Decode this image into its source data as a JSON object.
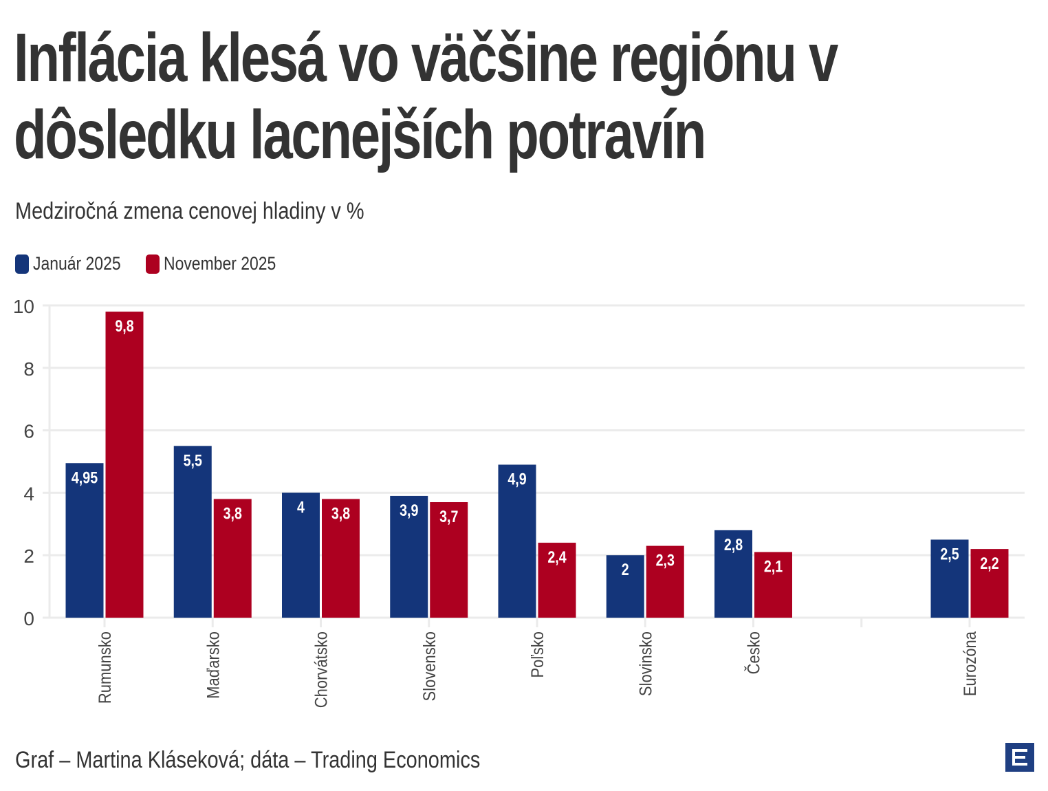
{
  "title": "Inflácia klesá vo väčšine regiónu v dôsledku lacnejších potravín",
  "title_lines": [
    "Inflácia klesá vo väčšine regiónu v",
    "dôsledku lacnejších potravín"
  ],
  "subtitle": "Medziročná zmena cenovej hladiny v %",
  "footer": "Graf – Martina Kláseková; dáta – Trading Economics",
  "logo": {
    "icon": "ce-logo-icon",
    "color": "#1f3f82"
  },
  "colors": {
    "series1": "#14357a",
    "series2": "#ad0020",
    "grid": "#ebebeb",
    "text": "#333333"
  },
  "chart_data": {
    "type": "bar",
    "title": "Inflácia klesá vo väčšine regiónu v dôsledku lacnejších potravín",
    "subtitle": "Medziročná zmena cenovej hladiny v %",
    "xlabel": "",
    "ylabel": "",
    "ylim": [
      0,
      10
    ],
    "yticks": [
      0,
      2,
      4,
      6,
      8,
      10
    ],
    "grid": true,
    "legend_position": "top-left",
    "categories": [
      "Rumunsko",
      "Maďarsko",
      "Chorvátsko",
      "Slovensko",
      "Poľsko",
      "Slovinsko",
      "Česko",
      "",
      "Eurozóna"
    ],
    "series": [
      {
        "name": "Január 2025",
        "color": "#14357a",
        "values": [
          4.95,
          5.5,
          4,
          3.9,
          4.9,
          2,
          2.8,
          null,
          2.5
        ],
        "labels": [
          "4,95",
          "5,5",
          "4",
          "3,9",
          "4,9",
          "2",
          "2,8",
          null,
          "2,5"
        ]
      },
      {
        "name": "November 2025",
        "color": "#ad0020",
        "values": [
          9.8,
          3.8,
          3.8,
          3.7,
          2.4,
          2.3,
          2.1,
          null,
          2.2
        ],
        "labels": [
          "9,8",
          "3,8",
          "3,8",
          "3,7",
          "2,4",
          "2,3",
          "2,1",
          null,
          "2,2"
        ]
      }
    ]
  }
}
